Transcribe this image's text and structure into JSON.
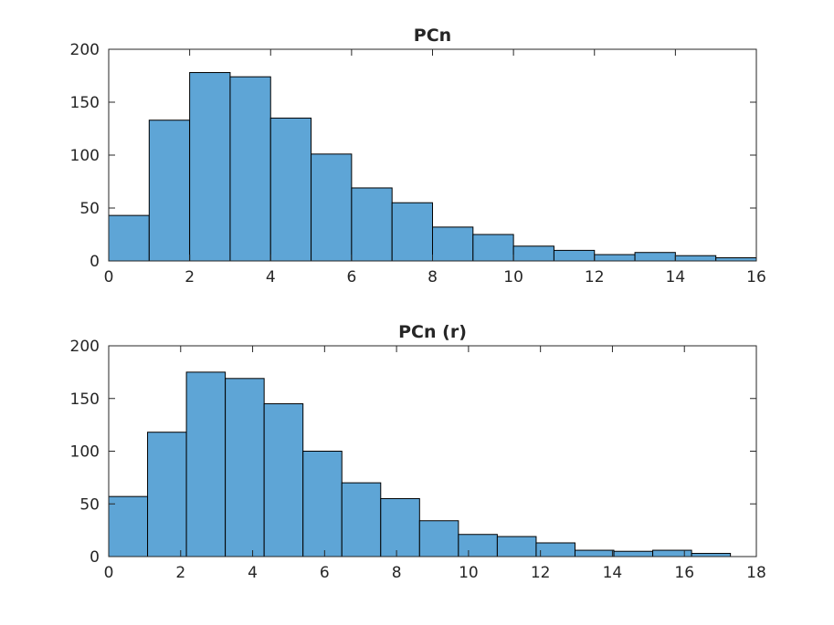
{
  "chart_data": [
    {
      "type": "bar",
      "title": "PCn",
      "xlabel": "",
      "ylabel": "",
      "xlim": [
        0,
        16
      ],
      "ylim": [
        0,
        200
      ],
      "xticks": [
        "0",
        "2",
        "4",
        "6",
        "8",
        "10",
        "12",
        "14",
        "16"
      ],
      "yticks": [
        "0",
        "50",
        "100",
        "150",
        "200"
      ],
      "bin_edges": [
        0,
        1,
        2,
        3,
        4,
        5,
        6,
        7,
        8,
        9,
        10,
        11,
        12,
        13,
        14,
        15,
        16
      ],
      "values": [
        43,
        133,
        178,
        174,
        135,
        101,
        69,
        55,
        32,
        25,
        14,
        10,
        6,
        8,
        5,
        3
      ],
      "grid": false,
      "bar_color": "#5ea5d6"
    },
    {
      "type": "bar",
      "title": "PCn (r)",
      "xlabel": "",
      "ylabel": "",
      "xlim": [
        0,
        18
      ],
      "ylim": [
        0,
        200
      ],
      "xticks": [
        "0",
        "2",
        "4",
        "6",
        "8",
        "10",
        "12",
        "14",
        "16",
        "18"
      ],
      "yticks": [
        "0",
        "50",
        "100",
        "150",
        "200"
      ],
      "bin_edges": [
        0,
        1.08,
        2.16,
        3.24,
        4.32,
        5.4,
        6.48,
        7.56,
        8.64,
        9.72,
        10.8,
        11.88,
        12.96,
        14.04,
        15.12,
        16.2,
        17.28
      ],
      "values": [
        57,
        118,
        175,
        169,
        145,
        100,
        70,
        55,
        34,
        21,
        19,
        13,
        6,
        5,
        6,
        3
      ],
      "grid": false,
      "bar_color": "#5ea5d6"
    }
  ]
}
